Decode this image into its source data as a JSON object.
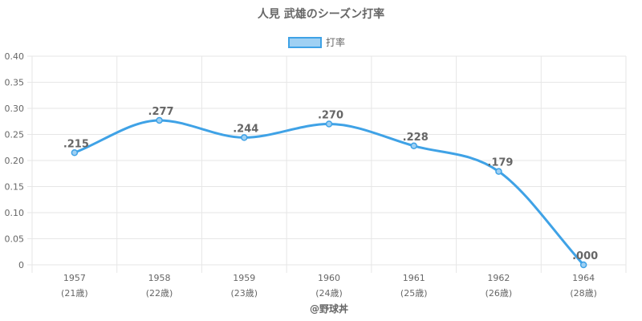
{
  "chart_data": {
    "type": "line",
    "title": "人見 武雄のシーズン打率",
    "legend": {
      "label": "打率",
      "position": "top"
    },
    "categories": [
      {
        "year": "1957",
        "age": "(21歳)"
      },
      {
        "year": "1958",
        "age": "(22歳)"
      },
      {
        "year": "1959",
        "age": "(23歳)"
      },
      {
        "year": "1960",
        "age": "(24歳)"
      },
      {
        "year": "1961",
        "age": "(25歳)"
      },
      {
        "year": "1962",
        "age": "(26歳)"
      },
      {
        "year": "1964",
        "age": "(28歳)"
      }
    ],
    "series": [
      {
        "name": "打率",
        "values": [
          0.215,
          0.277,
          0.244,
          0.27,
          0.228,
          0.179,
          0.0
        ],
        "data_labels": [
          ".215",
          ".277",
          ".244",
          ".270",
          ".228",
          ".179",
          ".000"
        ]
      }
    ],
    "ylim": [
      0,
      0.4
    ],
    "yticks": [
      "0",
      "0.05",
      "0.10",
      "0.15",
      "0.20",
      "0.25",
      "0.30",
      "0.35",
      "0.40"
    ],
    "grid": true,
    "colors": {
      "line": "#3fa2e6",
      "fill": "#9fd0f3",
      "grid": "#e6e6e6",
      "text": "#666666"
    },
    "footer": "@野球丼"
  }
}
